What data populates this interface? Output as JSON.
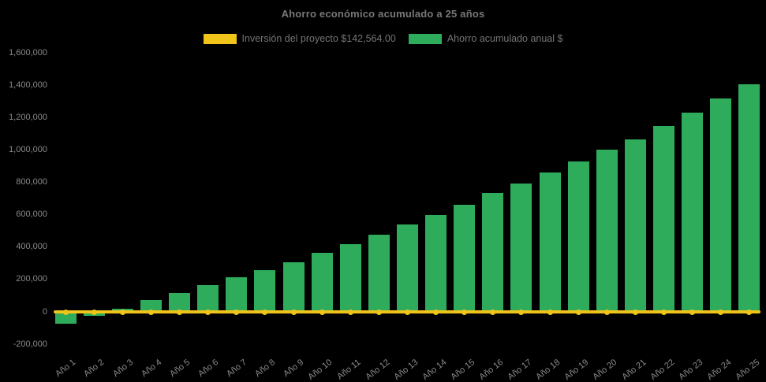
{
  "title": "Ahorro económico acumulado a 25 años",
  "legend": {
    "items": [
      {
        "label": "Inversión del proyecto $142,564.00",
        "color": "#F0C419"
      },
      {
        "label": "Ahorro acumulado anual $",
        "color": "#2EAC5C"
      }
    ]
  },
  "colors": {
    "background": "#000000",
    "bar_green": "#2EAC5C",
    "line_yellow": "#F0C419",
    "title_text": "#787878",
    "axis_text": "#8A8A8A"
  },
  "chart_data": {
    "type": "bar",
    "title": "Ahorro económico acumulado a 25 años",
    "xlabel": "",
    "ylabel": "",
    "grid": false,
    "legend_position": "top",
    "ylim": [
      -240000,
      1635000
    ],
    "y_ticks": [
      1600000,
      1400000,
      1200000,
      1000000,
      800000,
      600000,
      400000,
      200000,
      0,
      -200000
    ],
    "y_tick_labels": [
      "1,600,000",
      "1,400,000",
      "1,200,000",
      "1,000,000",
      "800,000",
      "600,000",
      "400,000",
      "200,000",
      "0",
      "-200,000"
    ],
    "categories": [
      "Año 1",
      "Año 2",
      "Año 3",
      "Año 4",
      "Año 5",
      "Año 6",
      "Año 7",
      "Año 8",
      "Año 9",
      "Año 10",
      "Año 11",
      "Año 12",
      "Año 13",
      "Año 14",
      "Año 15",
      "Año 16",
      "Año 17",
      "Año 18",
      "Año 19",
      "Año 20",
      "Año 21",
      "Año 22",
      "Año 23",
      "Año 24",
      "Año 25"
    ],
    "series": [
      {
        "name": "Inversión del proyecto $142,564.00",
        "type": "line",
        "color": "#F0C419",
        "investment_amount_label": "$142,564.00",
        "values": [
          0,
          0,
          0,
          0,
          0,
          0,
          0,
          0,
          0,
          0,
          0,
          0,
          0,
          0,
          0,
          0,
          0,
          0,
          0,
          0,
          0,
          0,
          0,
          0,
          0
        ]
      },
      {
        "name": "Ahorro acumulado anual $",
        "type": "bar",
        "color": "#2EAC5C",
        "values": [
          -73000,
          -24000,
          19000,
          71000,
          117000,
          165000,
          213000,
          260000,
          307000,
          364000,
          420000,
          477000,
          538000,
          598000,
          663000,
          734000,
          791000,
          861000,
          929000,
          1002000,
          1066000,
          1147000,
          1231000,
          1318000,
          1405000
        ]
      }
    ]
  }
}
